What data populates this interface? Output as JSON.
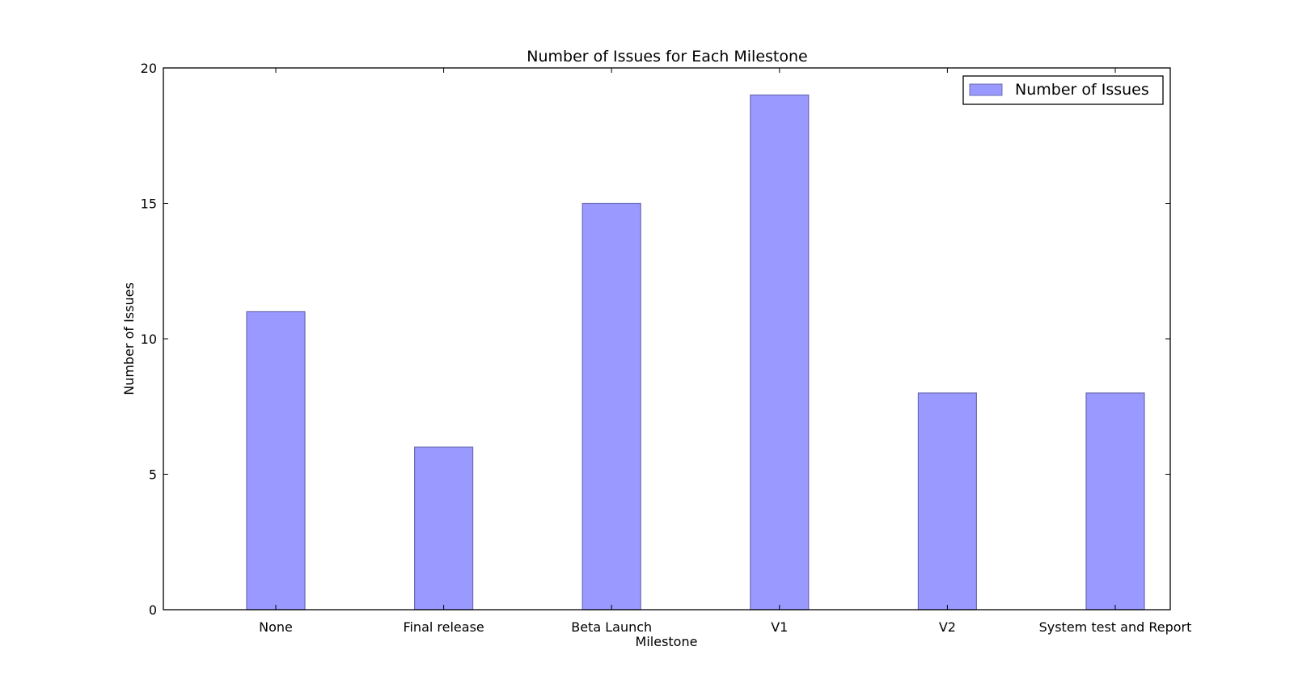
{
  "chart_data": {
    "type": "bar",
    "title": "Number of Issues for Each Milestone",
    "xlabel": "Milestone",
    "ylabel": "Number of Issues",
    "categories": [
      "None",
      "Final release",
      "Beta Launch",
      "V1",
      "V2",
      "System test and Report"
    ],
    "series": [
      {
        "name": "Number of Issues",
        "values": [
          11,
          6,
          15,
          19,
          8,
          8
        ],
        "color": "#9999ff",
        "edge_color": "#6b6bb3"
      }
    ],
    "ylim": [
      0,
      20
    ],
    "yticks": [
      0,
      5,
      10,
      15,
      20
    ],
    "grid": false,
    "legend_position": "top-right"
  }
}
